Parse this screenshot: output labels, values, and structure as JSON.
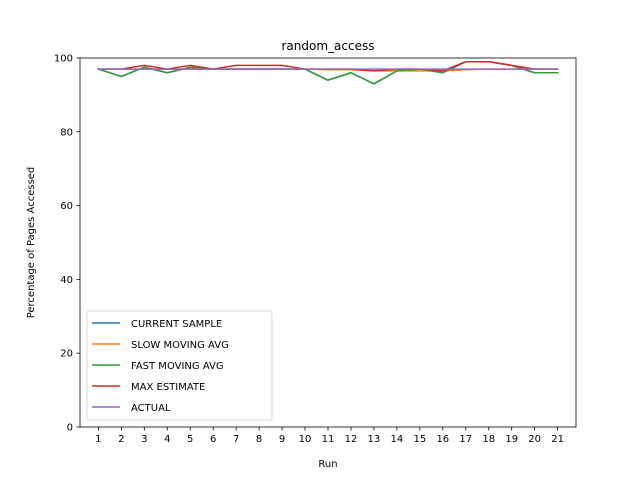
{
  "chart_data": {
    "type": "line",
    "title": "random_access",
    "xlabel": "Run",
    "ylabel": "Percentage of Pages Accessed",
    "x": [
      1,
      2,
      3,
      4,
      5,
      6,
      7,
      8,
      9,
      10,
      11,
      12,
      13,
      14,
      15,
      16,
      17,
      18,
      19,
      20,
      21
    ],
    "xlim": [
      0.2,
      21.8
    ],
    "ylim": [
      0,
      100
    ],
    "yticks": [
      0,
      20,
      40,
      60,
      80,
      100
    ],
    "grid": false,
    "legend_position": "lower-left",
    "series": [
      {
        "name": "CURRENT SAMPLE",
        "color": "#1f77b4",
        "values": [
          97,
          95,
          97.5,
          96,
          97.5,
          97,
          97,
          97,
          97,
          97,
          94,
          96,
          93,
          96.5,
          97,
          96,
          99,
          99,
          98,
          96,
          96
        ]
      },
      {
        "name": "SLOW MOVING AVG",
        "color": "#ff7f0e",
        "values": [
          97,
          97,
          97,
          97,
          97,
          97,
          97,
          97,
          97,
          97,
          96.8,
          96.8,
          96.5,
          96.5,
          96.5,
          96.5,
          96.8,
          97,
          97,
          97,
          97
        ]
      },
      {
        "name": "FAST MOVING AVG",
        "color": "#2ca02c",
        "values": [
          97,
          95,
          97.5,
          96,
          97.5,
          97,
          97,
          97,
          97,
          97,
          94,
          96,
          93,
          96.5,
          97,
          96,
          99,
          99,
          98,
          96,
          96
        ]
      },
      {
        "name": "MAX ESTIMATE",
        "color": "#d62728",
        "values": [
          97,
          97,
          98,
          97,
          98,
          97,
          98,
          98,
          98,
          97,
          97,
          97,
          96.5,
          97,
          97,
          96.5,
          99,
          99,
          98,
          97,
          97
        ]
      },
      {
        "name": "ACTUAL",
        "color": "#9467bd",
        "values": [
          97,
          97,
          97,
          97,
          97,
          97,
          97,
          97,
          97,
          97,
          97,
          97,
          97,
          97,
          97,
          97,
          97,
          97,
          97,
          97,
          97
        ]
      }
    ]
  }
}
